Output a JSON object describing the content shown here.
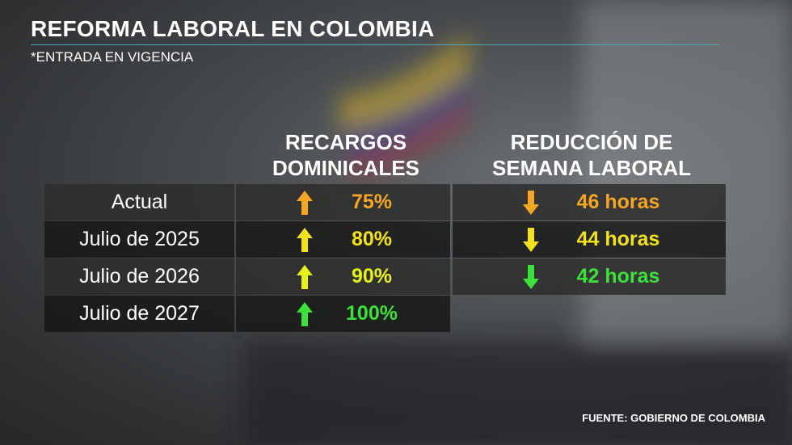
{
  "header": {
    "title": "REFORMA LABORAL EN COLOMBIA",
    "subtitle": "*ENTRADA EN VIGENCIA"
  },
  "table": {
    "columns": [
      "RECARGOS DOMINICALES",
      "REDUCCIÓN DE SEMANA LABORAL"
    ],
    "rows": [
      {
        "label": "Actual",
        "recargo": "75%",
        "recargo_color": "#f5a623",
        "semana": "46 horas",
        "semana_color": "#f5a623"
      },
      {
        "label": "Julio de 2025",
        "recargo": "80%",
        "recargo_color": "#f3e21a",
        "semana": "44 horas",
        "semana_color": "#f3e21a"
      },
      {
        "label": "Julio de 2026",
        "recargo": "90%",
        "recargo_color": "#e6f21a",
        "semana": "42 horas",
        "semana_color": "#3ee03a"
      },
      {
        "label": "Julio de 2027",
        "recargo": "100%",
        "recargo_color": "#3ee03a"
      }
    ]
  },
  "footer": {
    "source": "FUENTE: GOBIERNO DE COLOMBIA"
  }
}
